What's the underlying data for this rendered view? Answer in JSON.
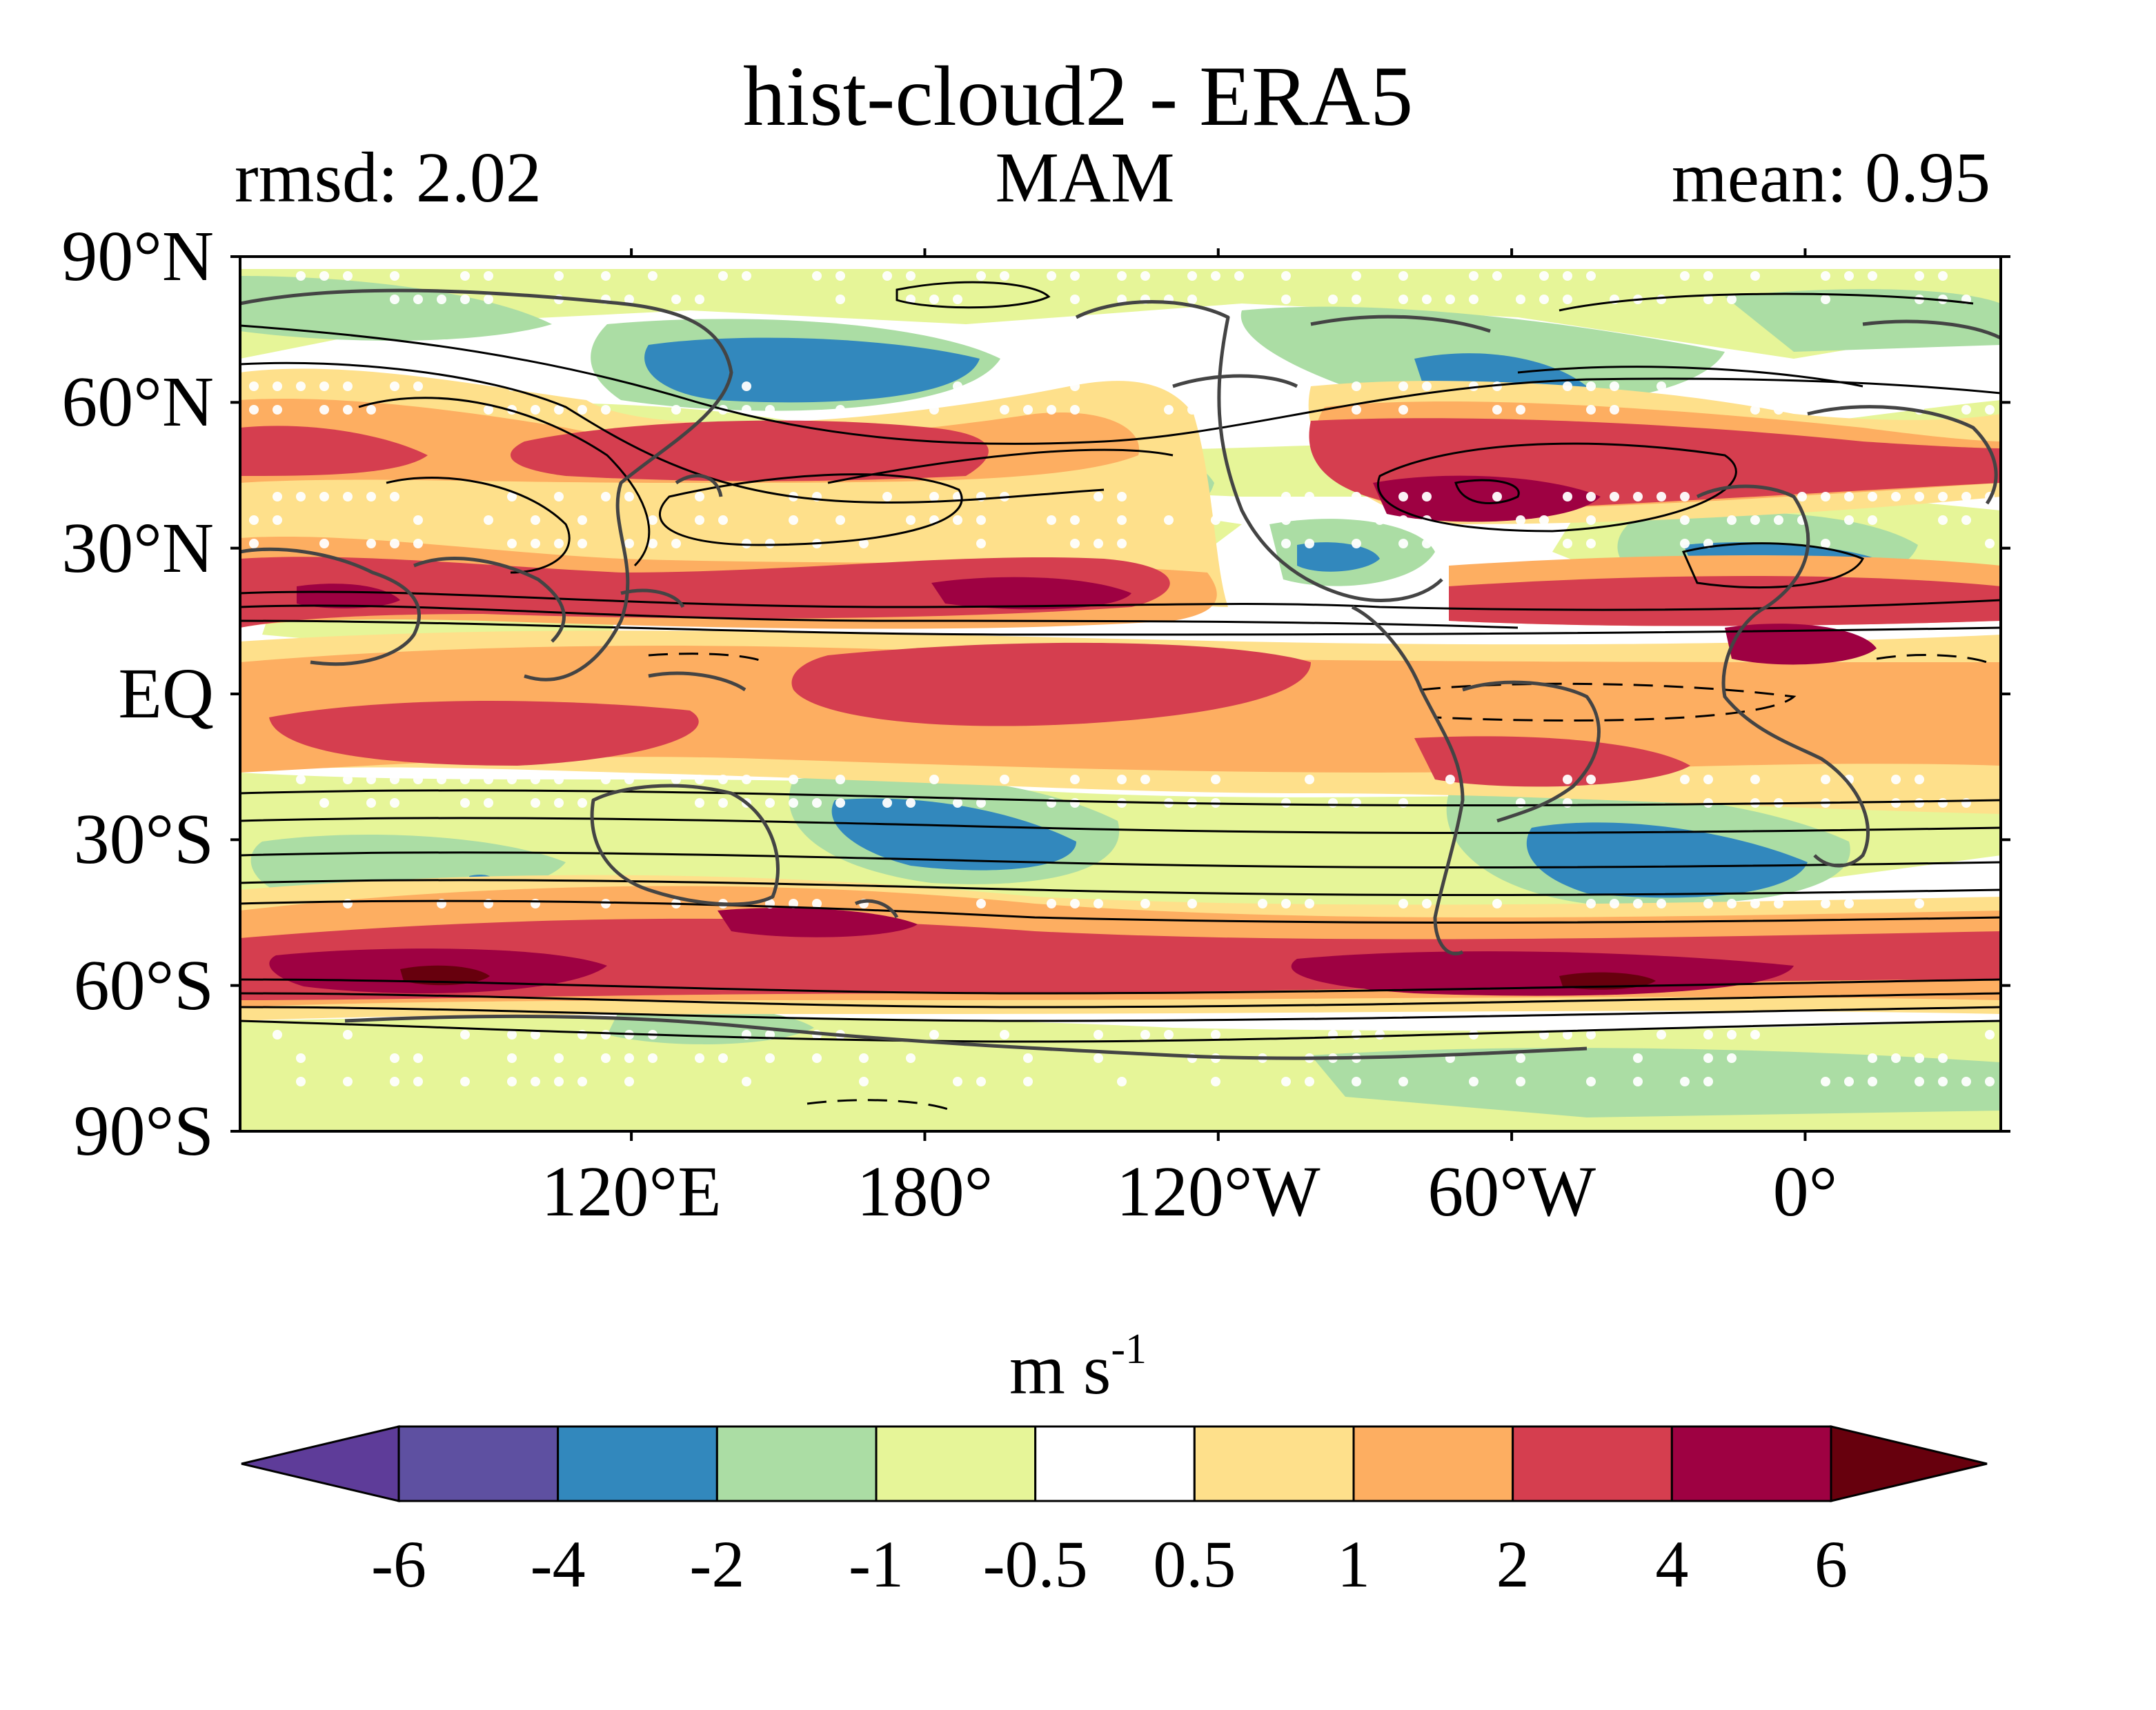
{
  "figure": {
    "title": "hist-cloud2 - ERA5",
    "rmsd_label": "rmsd: 2.02",
    "season_label": "MAM",
    "mean_label": "mean: 0.95"
  },
  "map": {
    "lat_ticks": [
      {
        "value": 90,
        "label": "90°N"
      },
      {
        "value": 60,
        "label": "60°N"
      },
      {
        "value": 30,
        "label": "30°N"
      },
      {
        "value": 0,
        "label": "EQ"
      },
      {
        "value": -30,
        "label": "30°S"
      },
      {
        "value": -60,
        "label": "60°S"
      },
      {
        "value": -90,
        "label": "90°S"
      }
    ],
    "lon_ticks": [
      {
        "value": 120,
        "label": "120°E"
      },
      {
        "value": 180,
        "label": "180°"
      },
      {
        "value": 240,
        "label": "120°W"
      },
      {
        "value": 300,
        "label": "60°W"
      },
      {
        "value": 360,
        "label": "0°"
      }
    ],
    "lon_range": [
      40,
      400
    ],
    "lat_range": [
      -90,
      90
    ],
    "field": "zonal wind bias (hist-cloud2 minus ERA5), stippling marks non-significant areas, black contours show ERA5 climatology"
  },
  "colorbar": {
    "units_base": "m s",
    "units_exp": "-1",
    "tick_labels": [
      "-6",
      "-4",
      "-2",
      "-1",
      "-0.5",
      "0.5",
      "1",
      "2",
      "4",
      "6"
    ],
    "colors": [
      "#5e3c99",
      "#5e50a1",
      "#3288bd",
      "#abdda4",
      "#e6f598",
      "#ffffff",
      "#fee08b",
      "#fdae61",
      "#d53e4f",
      "#9e0142",
      "#67000d"
    ]
  }
}
